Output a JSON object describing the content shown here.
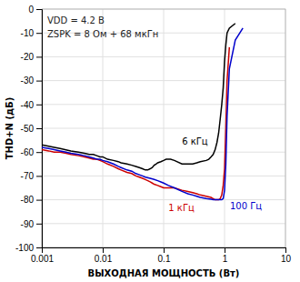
{
  "chart_data": {
    "type": "line",
    "xlabel": "ВЫХОДНАЯ МОЩНОСТЬ (Вт)",
    "ylabel": "THD+N (дБ)",
    "annotations": [
      "VDD = 4.2 В",
      "ZSPK = 8 Ом + 68 мкГн"
    ],
    "log": "x",
    "grid": true,
    "xlim": [
      0.001,
      10
    ],
    "ylim": [
      -100,
      0
    ],
    "xticks": [
      0.001,
      0.01,
      0.1,
      1,
      10
    ],
    "yticks": [
      0,
      -10,
      -20,
      -30,
      -40,
      -50,
      -60,
      -70,
      -80,
      -90,
      -100
    ],
    "series": [
      {
        "name": "6 кГц",
        "color": "#000000",
        "x": [
          0.001,
          0.0013,
          0.0016,
          0.002,
          0.003,
          0.004,
          0.005,
          0.006,
          0.007,
          0.008,
          0.009,
          0.01,
          0.012,
          0.015,
          0.018,
          0.02,
          0.025,
          0.03,
          0.035,
          0.04,
          0.045,
          0.05,
          0.055,
          0.06,
          0.065,
          0.07,
          0.075,
          0.08,
          0.09,
          0.1,
          0.11,
          0.12,
          0.13,
          0.15,
          0.2,
          0.25,
          0.3,
          0.35,
          0.4,
          0.5,
          0.55,
          0.6,
          0.65,
          0.7,
          0.75,
          0.8,
          0.85,
          0.9,
          0.95,
          1.0,
          1.05,
          1.1,
          1.2,
          1.5
        ],
        "values": [
          -57,
          -57.5,
          -58,
          -58.5,
          -59.5,
          -60,
          -60.5,
          -61,
          -61,
          -61.5,
          -62,
          -62,
          -63,
          -63.5,
          -64,
          -64.5,
          -65,
          -65.5,
          -66,
          -66.5,
          -67,
          -67.5,
          -67.5,
          -67,
          -66.5,
          -65.5,
          -65,
          -64.5,
          -64,
          -63.5,
          -63,
          -63,
          -63,
          -63.5,
          -65,
          -65,
          -65,
          -64.5,
          -64,
          -63.5,
          -63,
          -62,
          -61,
          -59,
          -56,
          -52,
          -46,
          -40,
          -33,
          -22,
          -15,
          -10,
          -8,
          -6
        ]
      },
      {
        "name": "1 кГц",
        "color": "#cc0000",
        "x": [
          0.001,
          0.0013,
          0.0016,
          0.002,
          0.0025,
          0.003,
          0.004,
          0.005,
          0.006,
          0.007,
          0.008,
          0.009,
          0.01,
          0.012,
          0.015,
          0.018,
          0.02,
          0.025,
          0.03,
          0.035,
          0.04,
          0.045,
          0.05,
          0.055,
          0.06,
          0.065,
          0.07,
          0.08,
          0.09,
          0.1,
          0.11,
          0.12,
          0.13,
          0.15,
          0.2,
          0.25,
          0.3,
          0.35,
          0.4,
          0.5,
          0.6,
          0.65,
          0.7,
          0.75,
          0.8,
          0.85,
          0.9,
          0.95,
          1.0,
          1.05,
          1.1,
          1.2
        ],
        "values": [
          -59,
          -59.5,
          -60,
          -60,
          -60.5,
          -61,
          -61.5,
          -62,
          -62.5,
          -63,
          -63,
          -63.5,
          -64,
          -65,
          -66,
          -67,
          -67.5,
          -68.5,
          -69,
          -70,
          -70.5,
          -71,
          -71.5,
          -72,
          -72.5,
          -73,
          -73.5,
          -74,
          -74.5,
          -75,
          -75,
          -75,
          -75,
          -75,
          -76,
          -76.5,
          -77,
          -77.5,
          -78,
          -78.5,
          -79,
          -79.5,
          -80,
          -80,
          -80,
          -79.5,
          -78,
          -74,
          -67,
          -50,
          -30,
          -16
        ]
      },
      {
        "name": "100 Гц",
        "color": "#0000cc",
        "x": [
          0.001,
          0.0013,
          0.0016,
          0.002,
          0.0025,
          0.003,
          0.004,
          0.005,
          0.006,
          0.007,
          0.008,
          0.009,
          0.01,
          0.012,
          0.015,
          0.018,
          0.02,
          0.025,
          0.03,
          0.035,
          0.04,
          0.045,
          0.05,
          0.06,
          0.07,
          0.08,
          0.09,
          0.1,
          0.12,
          0.15,
          0.2,
          0.25,
          0.3,
          0.35,
          0.4,
          0.5,
          0.6,
          0.65,
          0.7,
          0.75,
          0.8,
          0.85,
          0.9,
          0.95,
          1.0,
          1.05,
          1.1,
          1.2,
          1.5,
          2.0
        ],
        "values": [
          -58,
          -58.5,
          -59,
          -59.5,
          -60,
          -60.5,
          -61,
          -61.5,
          -62,
          -62.5,
          -63,
          -63,
          -63.5,
          -64,
          -65,
          -66,
          -66.5,
          -67.5,
          -68,
          -69,
          -69.5,
          -70,
          -70.5,
          -71,
          -71.5,
          -72,
          -72.5,
          -73,
          -74,
          -75,
          -76.5,
          -77.5,
          -78,
          -78.5,
          -79,
          -79.5,
          -79.8,
          -80,
          -80,
          -80,
          -80,
          -80,
          -80,
          -79.5,
          -76,
          -65,
          -45,
          -25,
          -13,
          -8
        ]
      }
    ]
  }
}
